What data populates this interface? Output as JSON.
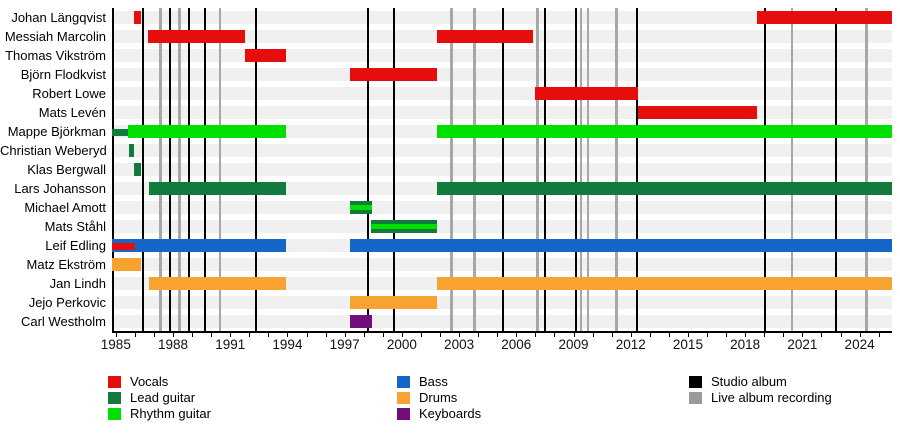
{
  "chart_data": {
    "type": "timeline",
    "description": "Band members timeline: colored bars show each member's active period per role; vertical lines mark album events.",
    "x_axis": {
      "start": 1984.8,
      "end": 2025.7,
      "labeled_ticks": [
        1985,
        1988,
        1991,
        1994,
        1997,
        2000,
        2003,
        2006,
        2009,
        2012,
        2015,
        2018,
        2021,
        2024
      ],
      "minor_tick_interval": 1
    },
    "members": [
      {
        "name": "Johan Längqvist",
        "segments": [
          {
            "role": "vocals",
            "start": 1985.95,
            "end": 1986.3
          },
          {
            "role": "vocals",
            "start": 2018.6,
            "end": 2025.7
          }
        ]
      },
      {
        "name": "Messiah Marcolin",
        "segments": [
          {
            "role": "vocals",
            "start": 1986.7,
            "end": 1991.8
          },
          {
            "role": "vocals",
            "start": 2001.85,
            "end": 2006.85
          }
        ]
      },
      {
        "name": "Thomas Vikström",
        "segments": [
          {
            "role": "vocals",
            "start": 1991.8,
            "end": 1993.9
          }
        ]
      },
      {
        "name": "Björn Flodkvist",
        "segments": [
          {
            "role": "vocals",
            "start": 1997.3,
            "end": 2001.85
          }
        ]
      },
      {
        "name": "Robert Lowe",
        "segments": [
          {
            "role": "vocals",
            "start": 2007.0,
            "end": 2012.4
          }
        ]
      },
      {
        "name": "Mats Levén",
        "segments": [
          {
            "role": "vocals",
            "start": 2012.4,
            "end": 2018.6
          }
        ]
      },
      {
        "name": "Mappe Björkman",
        "segments": [
          {
            "role": "lead_guitar",
            "start": 1984.8,
            "end": 1985.65,
            "thin": true
          },
          {
            "role": "rhythm_guitar",
            "start": 1985.65,
            "end": 1993.9
          },
          {
            "role": "rhythm_guitar",
            "start": 2001.85,
            "end": 2025.7
          }
        ]
      },
      {
        "name": "Christian Weberyd",
        "segments": [
          {
            "role": "lead_guitar",
            "start": 1985.7,
            "end": 1985.95
          }
        ]
      },
      {
        "name": "Klas Bergwall",
        "segments": [
          {
            "role": "lead_guitar",
            "start": 1985.95,
            "end": 1986.3
          }
        ]
      },
      {
        "name": "Lars Johansson",
        "segments": [
          {
            "role": "lead_guitar",
            "start": 1986.75,
            "end": 1993.9
          },
          {
            "role": "lead_guitar",
            "start": 2001.85,
            "end": 2025.7
          }
        ]
      },
      {
        "name": "Michael Amott",
        "segments": [
          {
            "role": "lead_rhythm_guitar",
            "start": 1997.3,
            "end": 1998.45
          }
        ]
      },
      {
        "name": "Mats Ståhl",
        "segments": [
          {
            "role": "lead_rhythm_guitar",
            "start": 1998.4,
            "end": 2001.85
          }
        ]
      },
      {
        "name": "Leif Edling",
        "segments": [
          {
            "role": "bass",
            "start": 1984.8,
            "end": 1993.9
          },
          {
            "role": "bass",
            "start": 1997.3,
            "end": 2025.7
          },
          {
            "role": "vocals",
            "start": 1984.8,
            "end": 1986.0,
            "thin": true,
            "overlay": true
          }
        ]
      },
      {
        "name": "Matz Ekström",
        "segments": [
          {
            "role": "drums",
            "start": 1984.8,
            "end": 1986.3
          }
        ]
      },
      {
        "name": "Jan Lindh",
        "segments": [
          {
            "role": "drums",
            "start": 1986.75,
            "end": 1993.9
          },
          {
            "role": "drums",
            "start": 2001.85,
            "end": 2025.7
          }
        ]
      },
      {
        "name": "Jejo Perkovic",
        "segments": [
          {
            "role": "drums",
            "start": 1997.3,
            "end": 2001.85
          }
        ]
      },
      {
        "name": "Carl Westholm",
        "segments": [
          {
            "role": "keyboards",
            "start": 1997.3,
            "end": 1998.45
          }
        ]
      }
    ],
    "albums": {
      "studio": [
        1986.45,
        1987.85,
        1988.85,
        1989.7,
        1992.35,
        1998.2,
        1999.6,
        2005.3,
        2007.5,
        2009.15,
        2012.35,
        2019.05,
        2022.75
      ],
      "live": [
        1987.35,
        1988.35,
        1990.45,
        2002.6,
        2003.8,
        2007.1,
        2009.4,
        2009.75,
        2011.25,
        2020.45,
        2024.35
      ]
    },
    "legend": {
      "roles": [
        {
          "key": "vocals",
          "label": "Vocals",
          "color": "#e60d0d"
        },
        {
          "key": "lead_guitar",
          "label": "Lead guitar",
          "color": "#127a3d"
        },
        {
          "key": "rhythm_guitar",
          "label": "Rhythm guitar",
          "color": "#00e000"
        },
        {
          "key": "bass",
          "label": "Bass",
          "color": "#1467c8"
        },
        {
          "key": "drums",
          "label": "Drums",
          "color": "#f7a231"
        },
        {
          "key": "keyboards",
          "label": "Keyboards",
          "color": "#740d7c"
        }
      ],
      "albums": [
        {
          "key": "studio",
          "label": "Studio album",
          "color": "#000000"
        },
        {
          "key": "live",
          "label": "Live album recording",
          "color": "#9a9a9a"
        }
      ]
    },
    "colors": {
      "row_band": "#f0f0f0",
      "studio_line": "#000000",
      "live_line": "#a7a7a7",
      "background": "#ffffff"
    }
  }
}
